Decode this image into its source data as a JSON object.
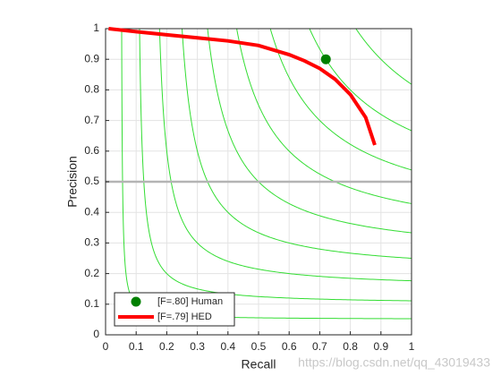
{
  "chart_data": {
    "type": "line",
    "xlabel": "Recall",
    "ylabel": "Precision",
    "xlim": [
      0,
      1
    ],
    "ylim": [
      0,
      1
    ],
    "xticks": [
      0,
      0.1,
      0.2,
      0.3,
      0.4,
      0.5,
      0.6,
      0.7,
      0.8,
      0.9,
      1
    ],
    "yticks": [
      0,
      0.1,
      0.2,
      0.3,
      0.4,
      0.5,
      0.6,
      0.7,
      0.8,
      0.9,
      1
    ],
    "grid": true,
    "legend": "lower left",
    "iso_f": {
      "values": [
        0.1,
        0.2,
        0.3,
        0.4,
        0.5,
        0.6,
        0.7,
        0.8,
        0.9
      ],
      "color": "#33dd33"
    },
    "hline": {
      "value": 0.5,
      "color": "#b4b4b4"
    },
    "series": [
      {
        "name": "[F=.80] Human",
        "color": "#008000",
        "mode": "marker",
        "x": [
          0.72
        ],
        "values": [
          0.9
        ]
      },
      {
        "name": "[F=.79] HED",
        "color": "#ff0000",
        "mode": "line",
        "x": [
          0.01,
          0.1,
          0.2,
          0.3,
          0.4,
          0.5,
          0.6,
          0.65,
          0.7,
          0.75,
          0.8,
          0.85,
          0.88
        ],
        "values": [
          1.0,
          0.99,
          0.98,
          0.97,
          0.96,
          0.945,
          0.915,
          0.895,
          0.87,
          0.835,
          0.785,
          0.71,
          0.62
        ]
      }
    ],
    "watermark": "https://blog.csdn.net/qq_43019433"
  }
}
